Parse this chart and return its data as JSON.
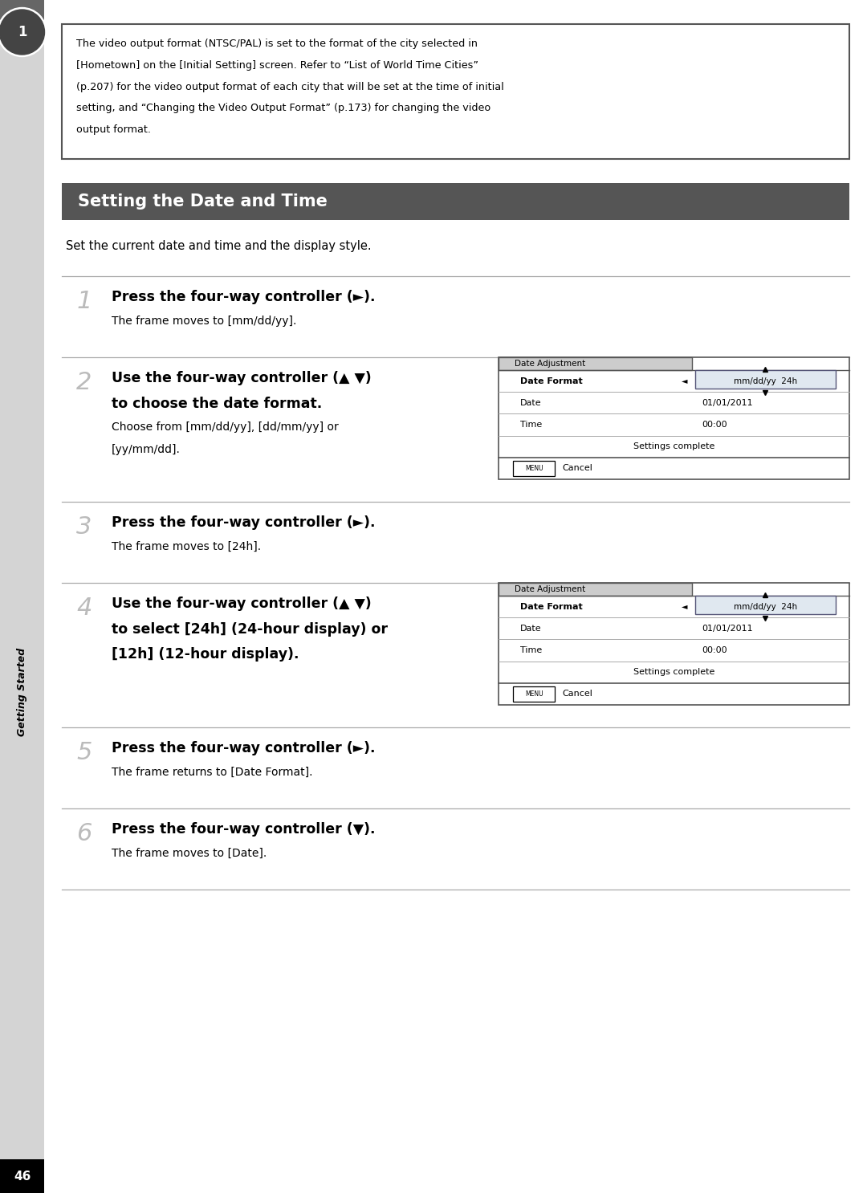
{
  "page_bg": "#ffffff",
  "sidebar_bg": "#cccccc",
  "sidebar_dark_bg": "#666666",
  "circle_color": "#444444",
  "circle_text": "1",
  "chapter_text": "Getting Started",
  "title_bar_bg": "#555555",
  "title_bar_text": "Setting the Date and Time",
  "title_bar_text_color": "#ffffff",
  "info_box_text_lines": [
    "The video output format (NTSC/PAL) is set to the format of the city selected in",
    "[Hometown] on the [Initial Setting] screen. Refer to “List of World Time Cities”",
    "(p.207) for the video output format of each city that will be set at the time of initial",
    "setting, and “Changing the Video Output Format” (p.173) for changing the video",
    "output format."
  ],
  "subtitle": "Set the current date and time and the display style.",
  "steps": [
    {
      "num": "1",
      "bold_lines": [
        "Press the four-way controller (►)."
      ],
      "normal_lines": [
        "The frame moves to [mm/dd/yy]."
      ],
      "has_panel": false
    },
    {
      "num": "2",
      "bold_lines": [
        "Use the four-way controller (▲ ▼)",
        "to choose the date format."
      ],
      "normal_lines": [
        "Choose from [mm/dd/yy], [dd/mm/yy] or",
        "[yy/mm/dd]."
      ],
      "has_panel": true
    },
    {
      "num": "3",
      "bold_lines": [
        "Press the four-way controller (►)."
      ],
      "normal_lines": [
        "The frame moves to [24h]."
      ],
      "has_panel": false
    },
    {
      "num": "4",
      "bold_lines": [
        "Use the four-way controller (▲ ▼)",
        "to select [24h] (24-hour display) or",
        "[12h] (12-hour display)."
      ],
      "normal_lines": [],
      "has_panel": true
    },
    {
      "num": "5",
      "bold_lines": [
        "Press the four-way controller (►)."
      ],
      "normal_lines": [
        "The frame returns to [Date Format]."
      ],
      "has_panel": false
    },
    {
      "num": "6",
      "bold_lines": [
        "Press the four-way controller (▼)."
      ],
      "normal_lines": [
        "The frame moves to [Date]."
      ],
      "has_panel": false
    }
  ],
  "page_number": "46"
}
